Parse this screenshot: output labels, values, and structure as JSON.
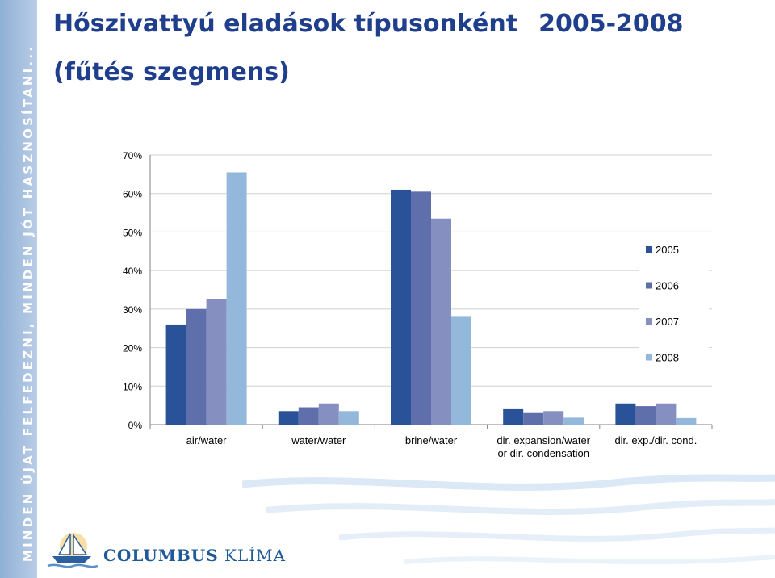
{
  "slide": {
    "title": "Hőszivattyú eladások típusonként",
    "title_years": "2005-2008",
    "subtitle": "(fűtés szegmens)",
    "side_slogan": "MINDEN ÚJAT FELFEDEZNI, MINDEN JÓT HASZNOSÍTANI...",
    "logo_text_1": "COLUMBUS",
    "logo_text_2": "KLÍMA"
  },
  "colors": {
    "title": "#1f3f8c",
    "side_band": "#9cb8dc",
    "series": [
      "#2a5298",
      "#5f6fab",
      "#8590c0",
      "#94b7dc"
    ]
  },
  "chart_data": {
    "type": "bar",
    "title": "",
    "xlabel": "",
    "ylabel": "",
    "ylim": [
      0,
      70
    ],
    "yticks": [
      0,
      10,
      20,
      30,
      40,
      50,
      60,
      70
    ],
    "ytick_labels": [
      "0%",
      "10%",
      "20%",
      "30%",
      "40%",
      "50%",
      "60%",
      "70%"
    ],
    "grid": true,
    "legend": "right",
    "categories": [
      [
        "air/water"
      ],
      [
        "water/water"
      ],
      [
        "brine/water"
      ],
      [
        "dir. expansion/water",
        "or dir. condensation"
      ],
      [
        "dir. exp./dir. cond."
      ]
    ],
    "series": [
      {
        "name": "2005",
        "values": [
          26,
          3.5,
          61,
          4,
          5.5
        ]
      },
      {
        "name": "2006",
        "values": [
          30,
          4.5,
          60.5,
          3.2,
          4.8
        ]
      },
      {
        "name": "2007",
        "values": [
          32.5,
          5.5,
          53.5,
          3.5,
          5.5
        ]
      },
      {
        "name": "2008",
        "values": [
          65.5,
          3.5,
          28,
          1.8,
          1.7
        ]
      }
    ]
  }
}
